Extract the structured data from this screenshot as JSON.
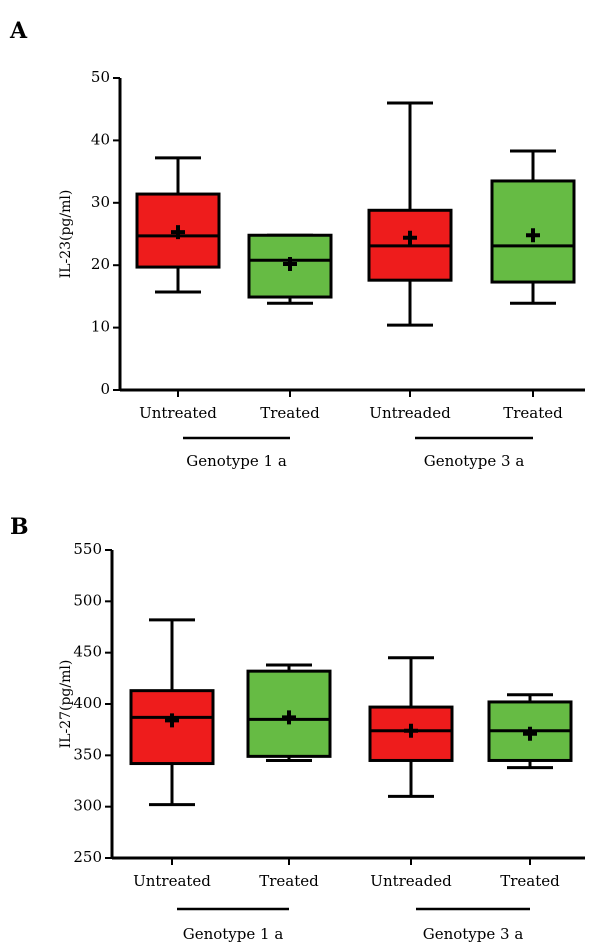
{
  "chart_data": [
    {
      "type": "box",
      "label": "A",
      "ylabel": "IL-23(pg/ml)",
      "categories": [
        "Untreated",
        "Treated",
        "Untreaded",
        "Treated"
      ],
      "groups": [
        "Genotype 1 a",
        "Genotype 3 a"
      ],
      "colors": [
        "#ee1c1c",
        "#66bb44",
        "#ee1c1c",
        "#66bb44"
      ],
      "boxes": [
        {
          "min": 15.7,
          "q1": 19.7,
          "median": 24.7,
          "q3": 31.4,
          "max": 37.2,
          "mean": 25.3
        },
        {
          "min": 13.9,
          "q1": 14.9,
          "median": 20.8,
          "q3": 24.8,
          "max": 24.8,
          "mean": 20.2
        },
        {
          "min": 10.4,
          "q1": 17.6,
          "median": 23.1,
          "q3": 28.8,
          "max": 46.0,
          "mean": 24.4
        },
        {
          "min": 13.9,
          "q1": 17.3,
          "median": 23.1,
          "q3": 33.5,
          "max": 38.3,
          "mean": 24.8
        }
      ],
      "ylim": [
        0,
        50
      ],
      "yticks": [
        0,
        10,
        20,
        30,
        40,
        50
      ]
    },
    {
      "type": "box",
      "label": "B",
      "ylabel": "IL-27(pg/ml)",
      "categories": [
        "Untreated",
        "Treated",
        "Untreaded",
        "Treated"
      ],
      "groups": [
        "Genotype 1 a",
        "Genotype 3 a"
      ],
      "colors": [
        "#ee1c1c",
        "#66bb44",
        "#ee1c1c",
        "#66bb44"
      ],
      "boxes": [
        {
          "min": 302,
          "q1": 342,
          "median": 387,
          "q3": 413,
          "max": 482,
          "mean": 384
        },
        {
          "min": 345,
          "q1": 349,
          "median": 385,
          "q3": 432,
          "max": 438,
          "mean": 387
        },
        {
          "min": 310,
          "q1": 345,
          "median": 374,
          "q3": 397,
          "max": 445,
          "mean": 374
        },
        {
          "min": 338,
          "q1": 345,
          "median": 374,
          "q3": 402,
          "max": 409,
          "mean": 371
        }
      ],
      "ylim": [
        250,
        550
      ],
      "yticks": [
        250,
        300,
        350,
        400,
        450,
        500,
        550
      ]
    }
  ]
}
